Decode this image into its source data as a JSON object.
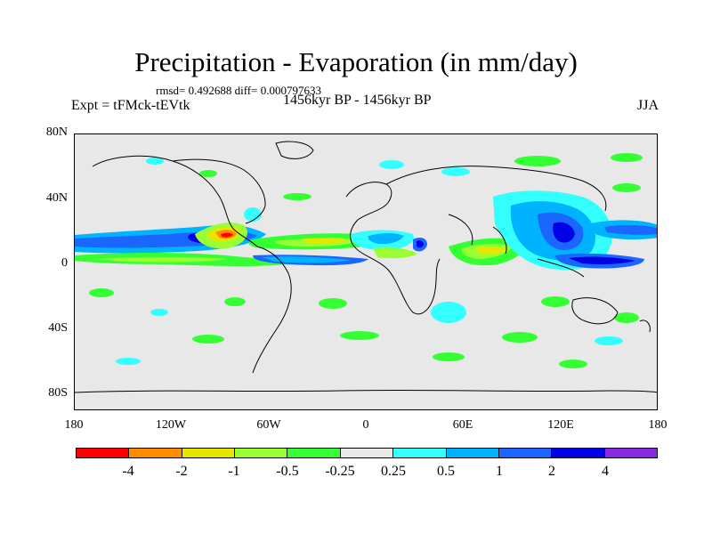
{
  "title": "Precipitation - Evaporation (in mm/day)",
  "stats": "rmsd= 0.492688 diff= 0.000797633",
  "expt": "Expt = tFMck-tEVtk",
  "period": "1456kyr BP - 1456kyr BP",
  "season": "JJA",
  "lat_labels": [
    "80N",
    "40N",
    "0",
    "40S",
    "80S"
  ],
  "lon_labels": [
    "180",
    "120W",
    "60W",
    "0",
    "60E",
    "120E",
    "180"
  ],
  "colorbar": {
    "colors": [
      "#ff0000",
      "#ff8c00",
      "#e6e600",
      "#99ff33",
      "#33ff33",
      "#e8e8e8",
      "#33ffff",
      "#00b3ff",
      "#1a66ff",
      "#0000e6",
      "#8a2be2"
    ],
    "labels": [
      "-4",
      "-2",
      "-1",
      "-0.5",
      "-0.25",
      "0.25",
      "0.5",
      "1",
      "2",
      "4"
    ]
  }
}
